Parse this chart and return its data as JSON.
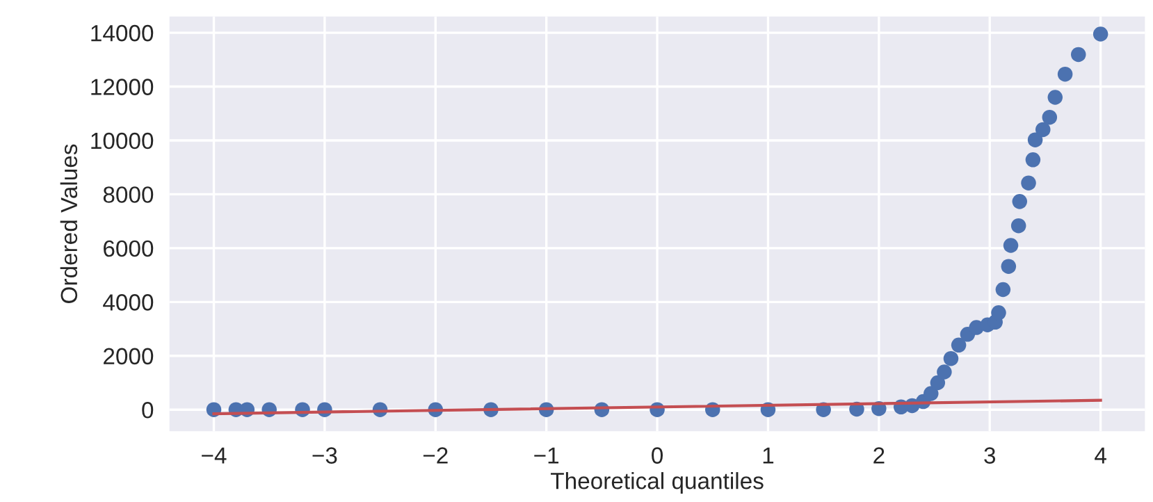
{
  "chart_data": {
    "type": "scatter",
    "xlabel": "Theoretical quantiles",
    "ylabel": "Ordered Values",
    "series": [
      {
        "color": "#4c72b0",
        "x": [
          -4.0,
          -3.8,
          -3.7,
          -3.5,
          -3.2,
          -3.0,
          -2.5,
          -2.0,
          -1.5,
          -1.0,
          -0.5,
          0.0,
          0.5,
          1.0,
          1.5,
          1.8,
          2.0,
          2.2,
          2.3,
          2.4,
          2.47,
          2.53,
          2.59,
          2.65,
          2.72,
          2.8,
          2.88,
          2.98,
          3.05,
          3.08,
          3.12,
          3.17,
          3.19,
          3.26,
          3.27,
          3.35,
          3.39,
          3.41,
          3.48,
          3.54,
          3.59,
          3.68,
          3.8,
          4.0
        ],
        "values": [
          0,
          0,
          0,
          0,
          0,
          0,
          0,
          0,
          0,
          0,
          0,
          0,
          0,
          0,
          0,
          20,
          40,
          100,
          150,
          300,
          600,
          1000,
          1400,
          1900,
          2400,
          2800,
          3050,
          3150,
          3250,
          3600,
          4460,
          5320,
          6100,
          6830,
          7730,
          8420,
          9280,
          10020,
          10400,
          10860,
          11600,
          12460,
          13190,
          13950
        ]
      },
      {
        "type": "line",
        "color": "#c44e52",
        "x": [
          -4.0,
          4.0
        ],
        "values": [
          -150,
          350
        ]
      }
    ],
    "xlim": [
      -4.4,
      4.4
    ],
    "ylim": [
      -800,
      14600
    ],
    "xticks": [
      {
        "value": -4,
        "label": "−4"
      },
      {
        "value": -3,
        "label": "−3"
      },
      {
        "value": -2,
        "label": "−2"
      },
      {
        "value": -1,
        "label": "−1"
      },
      0,
      1,
      2,
      3,
      4
    ],
    "yticks": [
      0,
      2000,
      4000,
      6000,
      8000,
      10000,
      12000,
      14000
    ],
    "grid": true
  }
}
